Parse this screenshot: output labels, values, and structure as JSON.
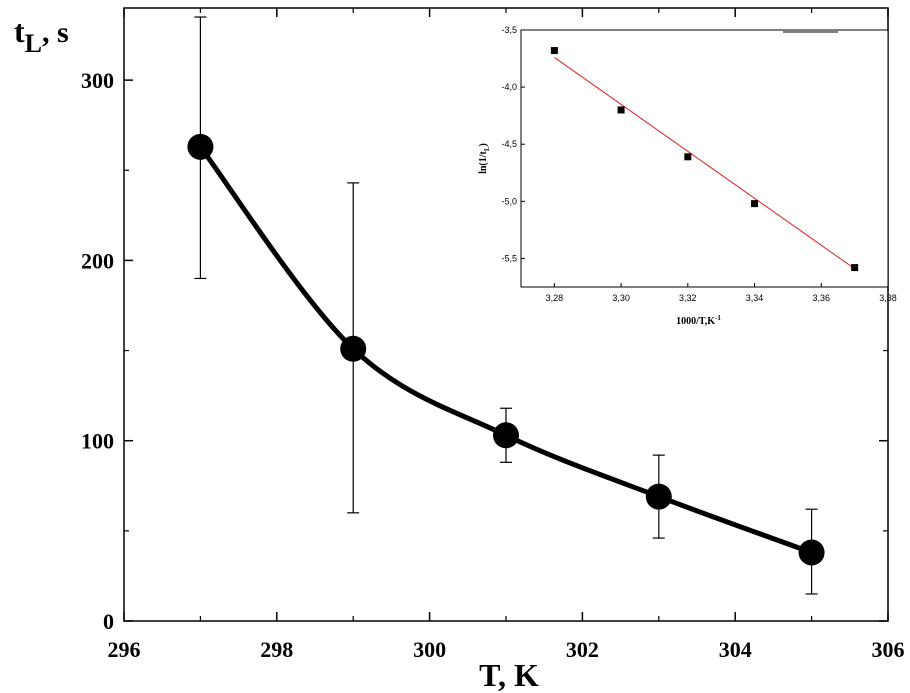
{
  "chart_data": [
    {
      "type": "scatter",
      "xlabel": "T, K",
      "ylabel": "t",
      "ylabel_subscript": "L",
      "ylabel_suffix": ", s",
      "xlim": [
        296,
        306
      ],
      "ylim": [
        0,
        340
      ],
      "xticks": [
        "296",
        "298",
        "300",
        "302",
        "304",
        "306"
      ],
      "yticks": [
        "0",
        "100",
        "200",
        "300"
      ],
      "xtick_values": [
        296,
        298,
        300,
        302,
        304,
        306
      ],
      "ytick_values": [
        0,
        100,
        200,
        300
      ],
      "fit_curve": "smooth line through points",
      "grid": false,
      "x": [
        297,
        299,
        301,
        303,
        305
      ],
      "y": [
        263,
        151,
        103,
        69,
        38
      ],
      "error_low": [
        190,
        60,
        88,
        46,
        15
      ],
      "error_high": [
        335,
        243,
        118,
        92,
        62
      ]
    },
    {
      "type": "scatter",
      "xlabel": "1000/T,K",
      "xlabel_superscript": "-1",
      "ylabel": "ln(1/t",
      "ylabel_subscript": "L",
      "ylabel_suffix": ")",
      "xlim": [
        3.27,
        3.38
      ],
      "ylim": [
        -5.75,
        -3.5
      ],
      "xticks": [
        "3,28",
        "3,30",
        "3,32",
        "3,34",
        "3,36",
        "3,38"
      ],
      "yticks": [
        "-3,5",
        "-4,0",
        "-4,5",
        "-5,0",
        "-5,5"
      ],
      "xtick_values": [
        3.28,
        3.3,
        3.32,
        3.34,
        3.36,
        3.38
      ],
      "ytick_values": [
        -3.5,
        -4.0,
        -4.5,
        -5.0,
        -5.5
      ],
      "legend": "top-right",
      "grid": false,
      "x": [
        3.28,
        3.3,
        3.32,
        3.34,
        3.37
      ],
      "y": [
        -3.68,
        -4.2,
        -4.61,
        -5.02,
        -5.58
      ],
      "fit": {
        "x": [
          3.28,
          3.37
        ],
        "y": [
          -3.74,
          -5.59
        ],
        "color": "#e02020"
      }
    }
  ]
}
